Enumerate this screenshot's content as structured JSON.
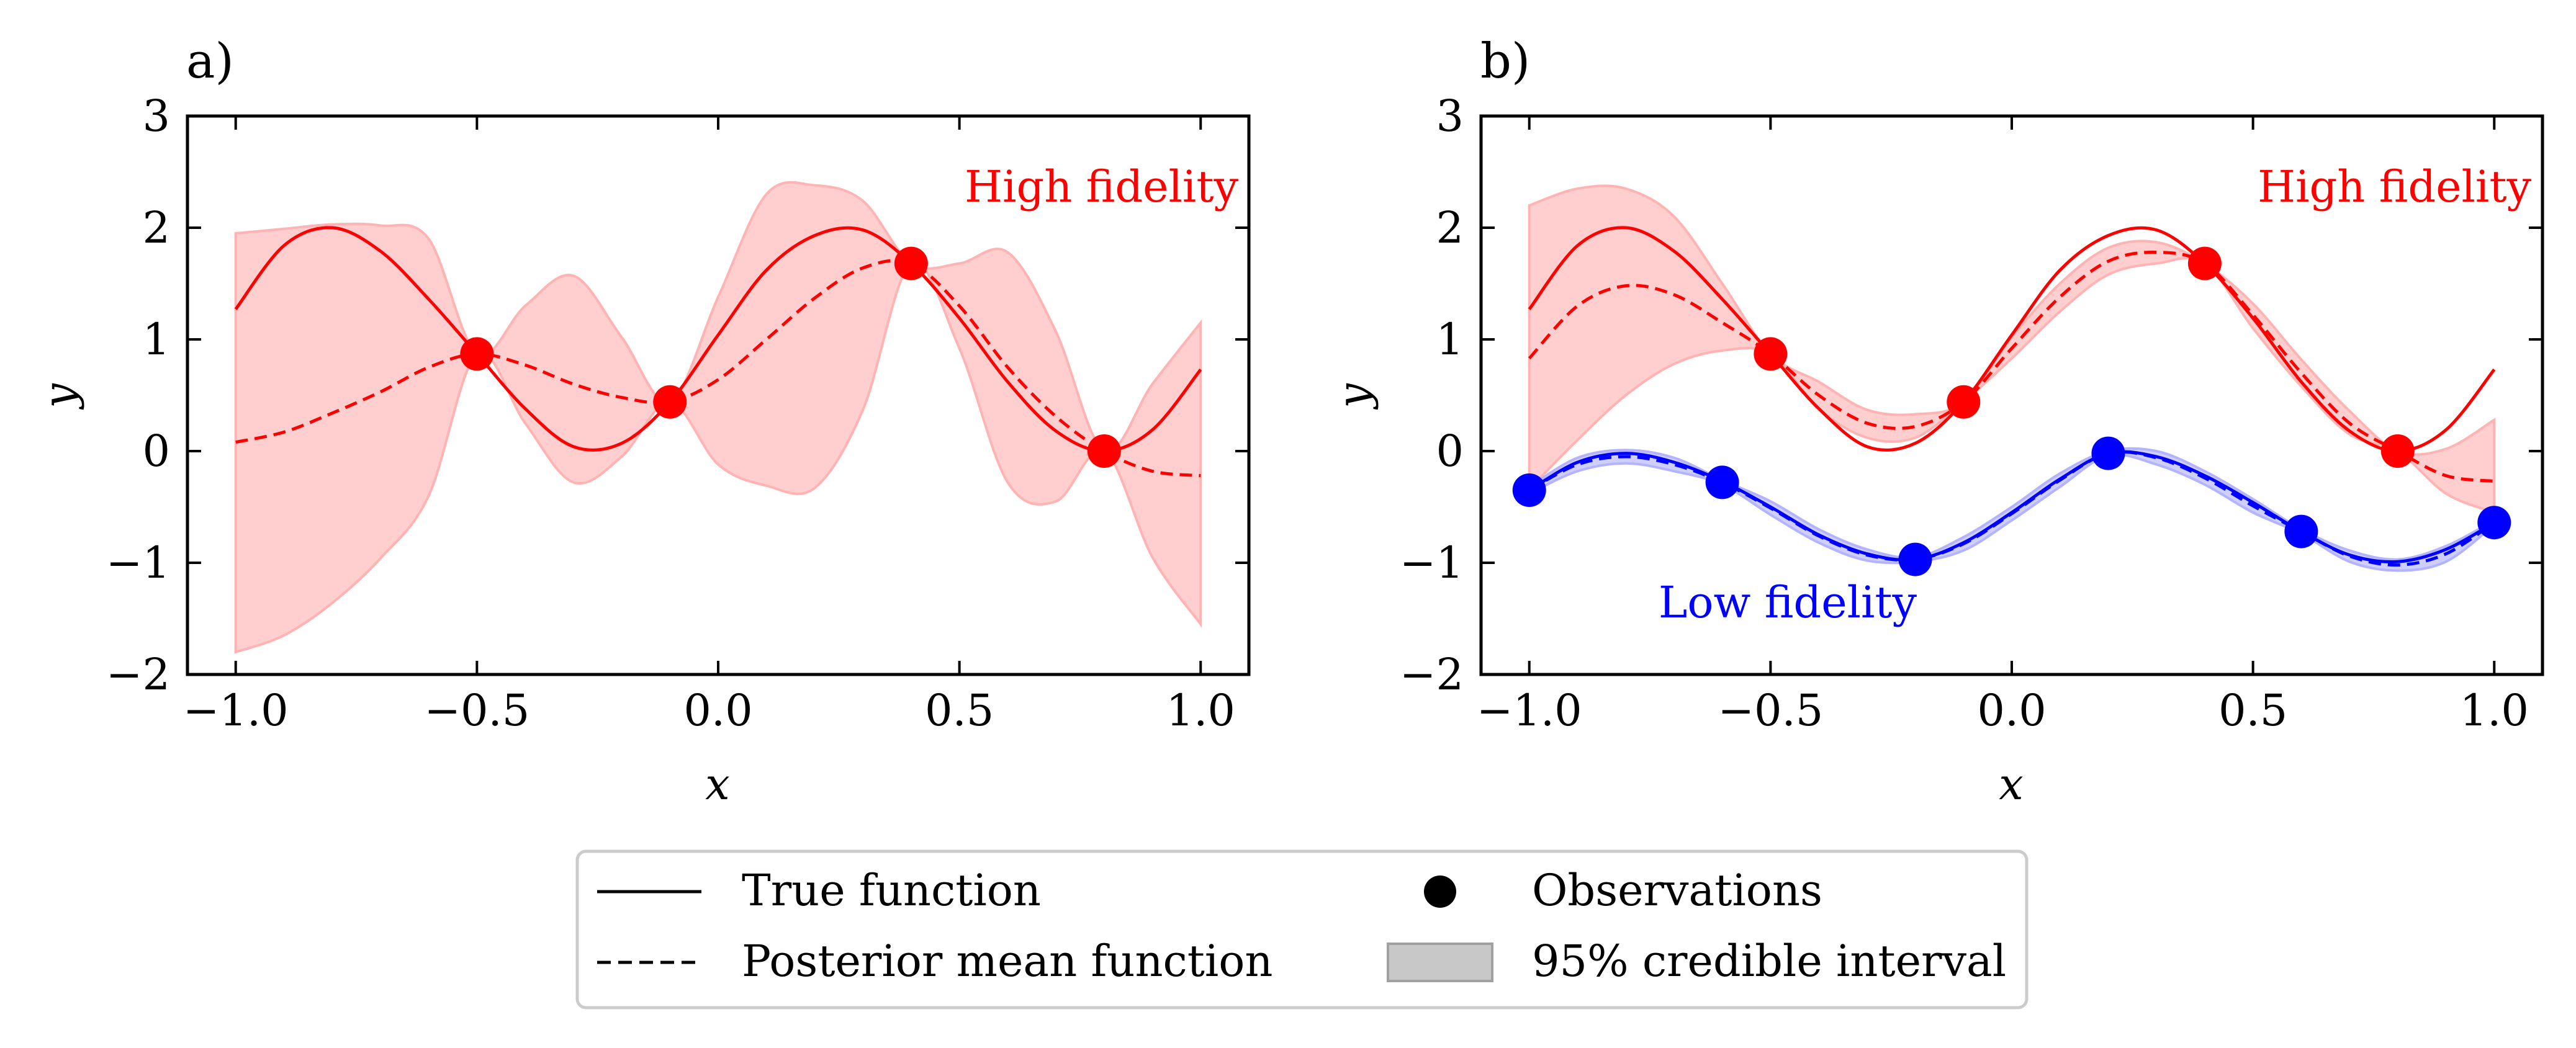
{
  "colors": {
    "high": "#ff0000",
    "high_band": "#ffb3b3",
    "low": "#0000ff",
    "low_band": "#b3b3ff",
    "axis": "#000000",
    "legend_band": "#c8c8c8"
  },
  "chart_data": [
    {
      "type": "line",
      "panel_label": "a)",
      "xlabel": "x",
      "ylabel": "y",
      "xlim": [
        -1.1,
        1.1
      ],
      "ylim": [
        -2,
        3
      ],
      "xticks": [
        -1.0,
        -0.5,
        0.0,
        0.5,
        1.0
      ],
      "xtick_labels": [
        "−1.0",
        "−0.5",
        "0.0",
        "0.5",
        "1.0"
      ],
      "yticks": [
        -2,
        -1,
        0,
        1,
        2,
        3
      ],
      "ytick_labels": [
        "−2",
        "−1",
        "0",
        "1",
        "2",
        "3"
      ],
      "annotations": [
        {
          "text": "High fidelity",
          "color": "#ff0000"
        }
      ],
      "series": [
        {
          "name": "High fidelity",
          "color": "#ff0000",
          "x": [
            -1.0,
            -0.9,
            -0.8,
            -0.7,
            -0.6,
            -0.5,
            -0.4,
            -0.3,
            -0.2,
            -0.1,
            0.0,
            0.1,
            0.2,
            0.3,
            0.4,
            0.5,
            0.6,
            0.7,
            0.8,
            0.9,
            1.0
          ],
          "true": [
            1.27,
            1.84,
            2.0,
            1.79,
            1.36,
            0.87,
            0.38,
            0.04,
            0.07,
            0.44,
            1.04,
            1.62,
            1.93,
            1.98,
            1.68,
            1.19,
            0.62,
            0.18,
            0.0,
            0.19,
            0.73
          ],
          "mean": [
            0.08,
            0.17,
            0.34,
            0.53,
            0.75,
            0.87,
            0.77,
            0.6,
            0.48,
            0.44,
            0.64,
            1.0,
            1.37,
            1.64,
            1.68,
            1.3,
            0.75,
            0.31,
            0.0,
            -0.18,
            -0.22
          ],
          "lower": [
            -1.8,
            -1.65,
            -1.36,
            -0.96,
            -0.4,
            0.87,
            0.25,
            -0.28,
            -0.05,
            0.44,
            -0.12,
            -0.31,
            -0.33,
            0.37,
            1.68,
            0.92,
            -0.28,
            -0.45,
            0.0,
            -0.95,
            -1.55
          ],
          "upper": [
            1.95,
            1.99,
            2.03,
            2.02,
            1.9,
            0.87,
            1.3,
            1.57,
            1.02,
            0.44,
            1.38,
            2.3,
            2.38,
            2.24,
            1.68,
            1.68,
            1.78,
            1.07,
            0.0,
            0.6,
            1.15
          ],
          "obs_x": [
            -0.5,
            -0.1,
            0.4,
            0.8
          ],
          "obs_y": [
            0.87,
            0.44,
            1.68,
            0.0
          ]
        }
      ]
    },
    {
      "type": "line",
      "panel_label": "b)",
      "xlabel": "x",
      "ylabel": "y",
      "xlim": [
        -1.1,
        1.1
      ],
      "ylim": [
        -2,
        3
      ],
      "xticks": [
        -1.0,
        -0.5,
        0.0,
        0.5,
        1.0
      ],
      "xtick_labels": [
        "−1.0",
        "−0.5",
        "0.0",
        "0.5",
        "1.0"
      ],
      "yticks": [
        -2,
        -1,
        0,
        1,
        2,
        3
      ],
      "ytick_labels": [
        "−2",
        "−1",
        "0",
        "1",
        "2",
        "3"
      ],
      "annotations": [
        {
          "text": "High fidelity",
          "color": "#ff0000"
        },
        {
          "text": "Low fidelity",
          "color": "#0000ff"
        }
      ],
      "series": [
        {
          "name": "High fidelity",
          "color": "#ff0000",
          "x": [
            -1.0,
            -0.9,
            -0.8,
            -0.7,
            -0.6,
            -0.5,
            -0.4,
            -0.3,
            -0.2,
            -0.1,
            0.0,
            0.1,
            0.2,
            0.3,
            0.4,
            0.5,
            0.6,
            0.7,
            0.8,
            0.9,
            1.0
          ],
          "true": [
            1.27,
            1.84,
            2.0,
            1.79,
            1.36,
            0.87,
            0.38,
            0.04,
            0.07,
            0.44,
            1.04,
            1.62,
            1.93,
            1.98,
            1.68,
            1.19,
            0.62,
            0.18,
            0.0,
            0.19,
            0.73
          ],
          "mean": [
            0.83,
            1.3,
            1.48,
            1.4,
            1.15,
            0.87,
            0.5,
            0.25,
            0.22,
            0.44,
            0.92,
            1.38,
            1.7,
            1.78,
            1.68,
            1.22,
            0.7,
            0.25,
            0.0,
            -0.22,
            -0.27
          ],
          "lower": [
            -0.34,
            0.1,
            0.5,
            0.78,
            0.9,
            0.87,
            0.38,
            0.12,
            0.12,
            0.44,
            0.83,
            1.25,
            1.58,
            1.68,
            1.68,
            1.1,
            0.58,
            0.15,
            0.0,
            -0.38,
            -0.55
          ],
          "upper": [
            2.2,
            2.35,
            2.35,
            2.1,
            1.5,
            0.87,
            0.62,
            0.37,
            0.33,
            0.44,
            1.02,
            1.5,
            1.82,
            1.87,
            1.68,
            1.32,
            0.82,
            0.36,
            0.0,
            0.02,
            0.28
          ],
          "obs_x": [
            -0.5,
            -0.1,
            0.4,
            0.8
          ],
          "obs_y": [
            0.87,
            0.44,
            1.68,
            0.0
          ]
        },
        {
          "name": "Low fidelity",
          "color": "#0000ff",
          "x": [
            -1.0,
            -0.9,
            -0.8,
            -0.7,
            -0.6,
            -0.5,
            -0.4,
            -0.3,
            -0.2,
            -0.1,
            0.0,
            0.1,
            0.2,
            0.3,
            0.4,
            0.5,
            0.6,
            0.7,
            0.8,
            0.9,
            1.0
          ],
          "true": [
            -0.35,
            -0.1,
            -0.02,
            -0.1,
            -0.27,
            -0.5,
            -0.75,
            -0.92,
            -0.97,
            -0.82,
            -0.55,
            -0.25,
            -0.02,
            -0.05,
            -0.22,
            -0.46,
            -0.72,
            -0.93,
            -0.99,
            -0.88,
            -0.64
          ],
          "mean": [
            -0.35,
            -0.12,
            -0.05,
            -0.12,
            -0.28,
            -0.51,
            -0.76,
            -0.93,
            -0.97,
            -0.83,
            -0.56,
            -0.26,
            -0.02,
            -0.06,
            -0.24,
            -0.49,
            -0.72,
            -0.94,
            -1.02,
            -0.92,
            -0.64
          ],
          "lower": [
            -0.38,
            -0.18,
            -0.11,
            -0.18,
            -0.3,
            -0.57,
            -0.82,
            -0.98,
            -0.99,
            -0.89,
            -0.62,
            -0.32,
            -0.04,
            -0.12,
            -0.3,
            -0.55,
            -0.74,
            -0.99,
            -1.07,
            -0.99,
            -0.66
          ],
          "upper": [
            -0.32,
            -0.06,
            0.01,
            -0.06,
            -0.26,
            -0.45,
            -0.7,
            -0.88,
            -0.95,
            -0.77,
            -0.5,
            -0.2,
            0.0,
            0.0,
            -0.18,
            -0.43,
            -0.7,
            -0.89,
            -0.97,
            -0.85,
            -0.62
          ],
          "obs_x": [
            -1.0,
            -0.6,
            -0.2,
            0.2,
            0.6,
            1.0
          ],
          "obs_y": [
            -0.35,
            -0.28,
            -0.97,
            -0.02,
            -0.72,
            -0.64
          ]
        }
      ]
    }
  ],
  "legend": {
    "items": [
      {
        "label": "True function",
        "symbol": "solid-line"
      },
      {
        "label": "Observations",
        "symbol": "dot"
      },
      {
        "label": "Posterior mean function",
        "symbol": "dashed-line"
      },
      {
        "label": "95% credible interval",
        "symbol": "band"
      }
    ]
  }
}
